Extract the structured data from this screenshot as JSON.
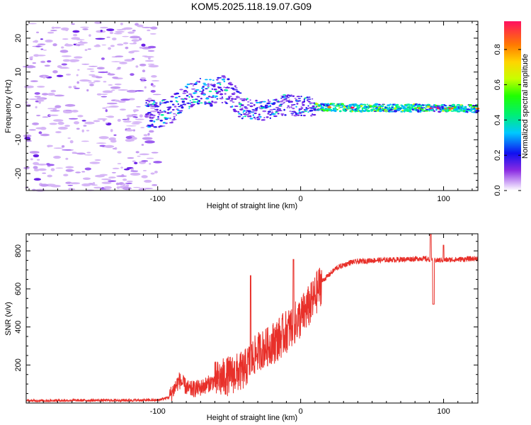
{
  "title": "KOM5.2025.118.19.07.G09",
  "chart_data": [
    {
      "type": "heatmap",
      "xlabel": "Height of straight line (km)",
      "ylabel": "Frequency (Hz)",
      "xlim": [
        -192,
        124
      ],
      "ylim": [
        -25,
        25
      ],
      "x_ticks": [
        -100,
        0,
        100
      ],
      "y_ticks": [
        20,
        10,
        0,
        -10,
        -20
      ],
      "x_tick_labels": [
        "-100",
        "0",
        "100"
      ],
      "y_tick_labels": [
        "20",
        "10",
        "0",
        "-10",
        "-20"
      ],
      "ridge": [
        [
          -108,
          -2.5
        ],
        [
          -100,
          -2.5
        ],
        [
          -92,
          -1.5
        ],
        [
          -85,
          0.5
        ],
        [
          -78,
          3
        ],
        [
          -70,
          4.5
        ],
        [
          -62,
          4
        ],
        [
          -55,
          5
        ],
        [
          -50,
          4
        ],
        [
          -45,
          1.5
        ],
        [
          -40,
          -0.5
        ],
        [
          -35,
          -1
        ],
        [
          -28,
          -1.5
        ],
        [
          -22,
          -0.8
        ],
        [
          -15,
          0.2
        ],
        [
          -8,
          0.3
        ],
        [
          0,
          0
        ],
        [
          10,
          -0.3
        ],
        [
          30,
          -0.5
        ],
        [
          60,
          -0.6
        ],
        [
          90,
          -0.7
        ],
        [
          124,
          -0.8
        ]
      ],
      "noise_region": [
        -192,
        -100
      ],
      "colorbar": {
        "label": "Normalized spectral amplitude",
        "range": [
          0,
          1
        ],
        "ticks": [
          0.0,
          0.2,
          0.4,
          0.6,
          0.8
        ],
        "tick_labels": [
          "0.0",
          "0.2",
          "0.4",
          "0.6",
          "0.8"
        ]
      }
    },
    {
      "type": "line",
      "xlabel": "Height of straight line (km)",
      "ylabel": "SNR (v/v)",
      "xlim": [
        -192,
        124
      ],
      "ylim": [
        0,
        890
      ],
      "x_ticks": [
        -100,
        0,
        100
      ],
      "y_ticks": [
        200,
        400,
        600,
        800
      ],
      "x_tick_labels": [
        "-100",
        "0",
        "100"
      ],
      "y_tick_labels": [
        "200",
        "400",
        "600",
        "800"
      ],
      "color": "#e8302a",
      "series": [
        {
          "name": "SNR",
          "x": [
            -192,
            -150,
            -100,
            -92,
            -85,
            -78,
            -70,
            -62,
            -55,
            -48,
            -40,
            -35,
            -30,
            -22,
            -15,
            -8,
            0,
            8,
            15,
            25,
            35,
            50,
            70,
            85,
            95,
            110,
            124
          ],
          "y": [
            12,
            14,
            15,
            30,
            120,
            70,
            80,
            110,
            130,
            150,
            170,
            220,
            270,
            300,
            340,
            390,
            450,
            530,
            640,
            710,
            740,
            750,
            755,
            760,
            750,
            755,
            760
          ]
        }
      ]
    }
  ]
}
